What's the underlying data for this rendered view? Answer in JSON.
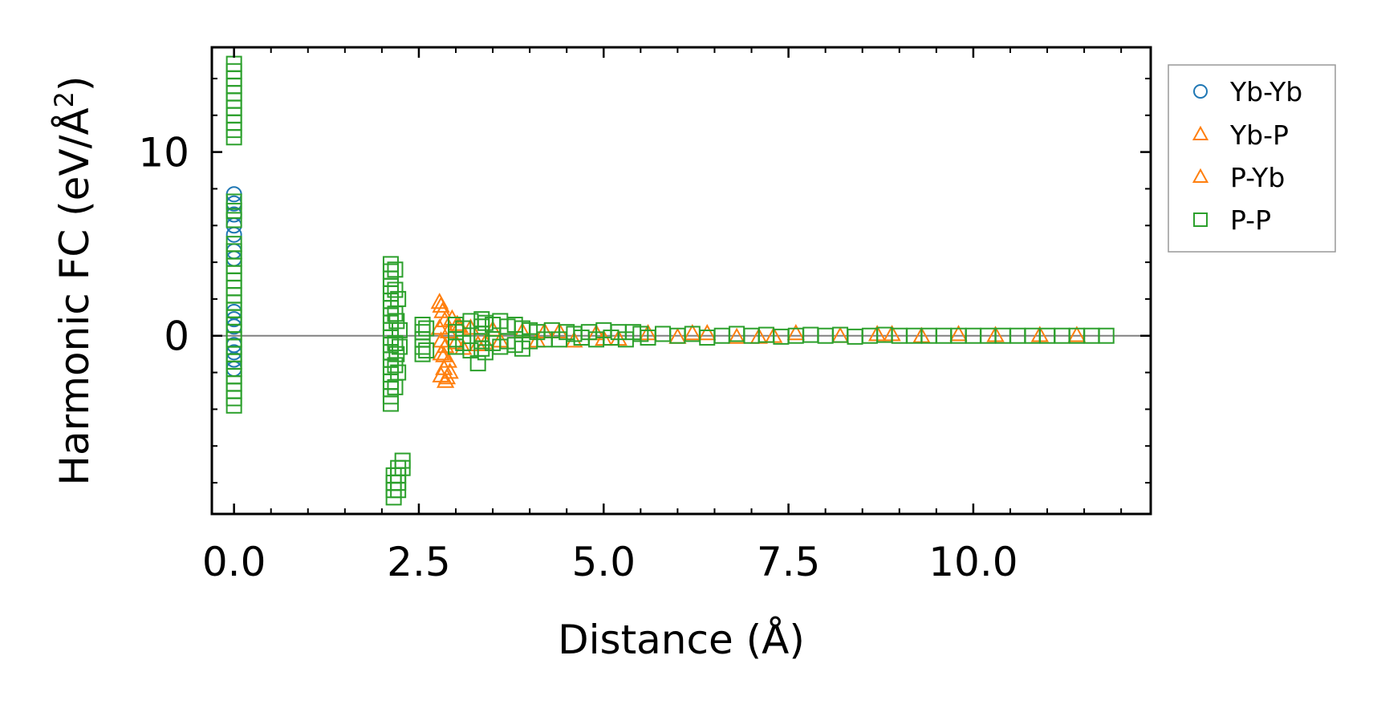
{
  "chart_data": {
    "type": "scatter",
    "xlabel": "Distance (Å)",
    "ylabel_main": "Harmonic FC (eV/Å",
    "ylabel_sup": "2",
    "ylabel_end": ")",
    "xlim": [
      -0.3,
      12.4
    ],
    "ylim": [
      -9.7,
      15.7
    ],
    "x_ticks": [
      0.0,
      2.5,
      5.0,
      7.5,
      10.0
    ],
    "x_tick_labels": [
      "0.0",
      "2.5",
      "5.0",
      "7.5",
      "10.0"
    ],
    "y_ticks": [
      0,
      10
    ],
    "y_tick_labels": [
      "0",
      "10"
    ],
    "x_minor_step": 0.5,
    "y_minor_step": 2,
    "zero_line": true,
    "legend_position": "outside-right-top",
    "series": [
      {
        "name": "Yb-Yb",
        "marker": "circle",
        "color": "#1f77b4",
        "points": [
          [
            0,
            7.7
          ],
          [
            0,
            7.2
          ],
          [
            0,
            6.6
          ],
          [
            0,
            6.0
          ],
          [
            0,
            5.5
          ],
          [
            0,
            4.6
          ],
          [
            0,
            4.2
          ],
          [
            0,
            1.3
          ],
          [
            0,
            0.9
          ],
          [
            0,
            0.5
          ],
          [
            0,
            -0.5
          ],
          [
            0,
            -0.9
          ],
          [
            0,
            -1.3
          ],
          [
            0,
            -1.8
          ]
        ]
      },
      {
        "name": "Yb-P",
        "marker": "triangle",
        "color": "#ff7f0e",
        "points": [
          [
            2.78,
            1.8
          ],
          [
            2.82,
            1.3
          ],
          [
            2.85,
            0.8
          ],
          [
            2.78,
            0.4
          ],
          [
            2.9,
            0.2
          ],
          [
            2.8,
            -0.3
          ],
          [
            2.86,
            -0.6
          ],
          [
            2.8,
            -1.0
          ],
          [
            2.9,
            -1.4
          ],
          [
            2.84,
            -1.8
          ],
          [
            2.8,
            -2.2
          ],
          [
            2.86,
            -2.5
          ],
          [
            2.92,
            -2.0
          ],
          [
            2.95,
            0.9
          ],
          [
            3.0,
            -0.4
          ],
          [
            3.05,
            0.5
          ],
          [
            3.1,
            -0.7
          ],
          [
            3.2,
            0.4
          ],
          [
            3.3,
            -0.5
          ],
          [
            3.5,
            0.3
          ],
          [
            3.6,
            -0.3
          ],
          [
            3.9,
            0.2
          ],
          [
            4.1,
            -0.3
          ],
          [
            4.4,
            0.2
          ],
          [
            4.6,
            -0.3
          ],
          [
            4.9,
            0.1
          ],
          [
            5.2,
            -0.2
          ],
          [
            5.6,
            0.1
          ],
          [
            6.0,
            -0.1
          ],
          [
            6.4,
            0.1
          ],
          [
            6.8,
            -0.1
          ],
          [
            7.1,
            -0.1
          ],
          [
            7.6,
            0.1
          ],
          [
            8.2,
            -0.05
          ],
          [
            8.7,
            0.05
          ],
          [
            9.3,
            -0.05
          ],
          [
            9.8,
            0.05
          ],
          [
            10.3,
            0.0
          ],
          [
            10.9,
            0.0
          ],
          [
            11.4,
            0.0
          ]
        ]
      },
      {
        "name": "P-Yb",
        "marker": "triangle",
        "color": "#ff7f0e",
        "points": [
          [
            2.8,
            1.6
          ],
          [
            2.84,
            -1.1
          ],
          [
            2.88,
            -2.3
          ],
          [
            3.02,
            0.6
          ],
          [
            3.4,
            -0.4
          ],
          [
            4.2,
            0.2
          ],
          [
            5.0,
            -0.2
          ],
          [
            6.2,
            0.1
          ],
          [
            7.3,
            -0.05
          ],
          [
            8.9,
            0.05
          ]
        ]
      },
      {
        "name": "P-P",
        "marker": "square",
        "color": "#2ca02c",
        "points": [
          [
            0,
            14.8
          ],
          [
            0,
            14.4
          ],
          [
            0,
            14.0
          ],
          [
            0,
            13.6
          ],
          [
            0,
            13.2
          ],
          [
            0,
            12.8
          ],
          [
            0,
            12.4
          ],
          [
            0,
            12.0
          ],
          [
            0,
            11.6
          ],
          [
            0,
            11.2
          ],
          [
            0,
            10.8
          ],
          [
            0,
            7.3
          ],
          [
            0,
            6.8
          ],
          [
            0,
            6.3
          ],
          [
            0,
            5.0
          ],
          [
            0,
            4.6
          ],
          [
            0,
            4.2
          ],
          [
            0,
            3.8
          ],
          [
            0,
            3.4
          ],
          [
            0,
            3.0
          ],
          [
            0,
            2.6
          ],
          [
            0,
            2.2
          ],
          [
            0,
            1.8
          ],
          [
            0,
            1.4
          ],
          [
            0,
            1.0
          ],
          [
            0,
            0.6
          ],
          [
            0,
            0.2
          ],
          [
            0,
            -0.2
          ],
          [
            0,
            -0.6
          ],
          [
            0,
            -1.0
          ],
          [
            0,
            -1.4
          ],
          [
            0,
            -1.8
          ],
          [
            0,
            -2.2
          ],
          [
            0,
            -2.6
          ],
          [
            0,
            -3.0
          ],
          [
            0,
            -3.4
          ],
          [
            0,
            -3.8
          ],
          [
            2.12,
            3.9
          ],
          [
            2.12,
            3.5
          ],
          [
            2.12,
            3.1
          ],
          [
            2.12,
            2.7
          ],
          [
            2.12,
            2.3
          ],
          [
            2.12,
            1.9
          ],
          [
            2.12,
            1.5
          ],
          [
            2.12,
            1.1
          ],
          [
            2.12,
            0.7
          ],
          [
            2.12,
            0.3
          ],
          [
            2.12,
            -0.1
          ],
          [
            2.12,
            -0.5
          ],
          [
            2.12,
            -0.9
          ],
          [
            2.12,
            -1.3
          ],
          [
            2.12,
            -1.7
          ],
          [
            2.12,
            -2.1
          ],
          [
            2.12,
            -2.5
          ],
          [
            2.12,
            -2.9
          ],
          [
            2.12,
            -3.3
          ],
          [
            2.12,
            -3.7
          ],
          [
            2.16,
            -7.6
          ],
          [
            2.16,
            -8.0
          ],
          [
            2.16,
            -8.4
          ],
          [
            2.16,
            -8.8
          ],
          [
            2.22,
            -7.2
          ],
          [
            2.22,
            -7.6
          ],
          [
            2.22,
            -8.0
          ],
          [
            2.22,
            -8.4
          ],
          [
            2.28,
            -6.8
          ],
          [
            2.28,
            -7.2
          ],
          [
            2.18,
            3.6
          ],
          [
            2.18,
            2.5
          ],
          [
            2.18,
            1.2
          ],
          [
            2.18,
            -0.4
          ],
          [
            2.18,
            -1.6
          ],
          [
            2.18,
            -2.8
          ],
          [
            2.2,
            0.8
          ],
          [
            2.2,
            -1.0
          ],
          [
            2.22,
            2.0
          ],
          [
            2.22,
            -2.0
          ],
          [
            2.24,
            0.3
          ],
          [
            2.24,
            -0.6
          ],
          [
            2.55,
            0.6
          ],
          [
            2.55,
            0.2
          ],
          [
            2.55,
            -0.2
          ],
          [
            2.55,
            -0.6
          ],
          [
            2.55,
            -1.0
          ],
          [
            2.6,
            0.4
          ],
          [
            2.6,
            -0.8
          ],
          [
            3.0,
            0.6
          ],
          [
            3.0,
            0.2
          ],
          [
            3.0,
            -0.2
          ],
          [
            3.0,
            -0.6
          ],
          [
            3.1,
            0.4
          ],
          [
            3.1,
            -0.4
          ],
          [
            3.2,
            0.8
          ],
          [
            3.2,
            -0.8
          ],
          [
            3.3,
            -1.5
          ],
          [
            3.35,
            0.9
          ],
          [
            3.35,
            0.5
          ],
          [
            3.35,
            0.1
          ],
          [
            3.35,
            -0.3
          ],
          [
            3.35,
            -0.7
          ],
          [
            3.4,
            0.7
          ],
          [
            3.4,
            -0.9
          ],
          [
            3.5,
            0.6
          ],
          [
            3.5,
            -0.4
          ],
          [
            3.6,
            0.8
          ],
          [
            3.6,
            -0.6
          ],
          [
            3.7,
            0.5
          ],
          [
            3.7,
            -0.3
          ],
          [
            3.8,
            0.6
          ],
          [
            3.8,
            -0.5
          ],
          [
            3.9,
            0.4
          ],
          [
            3.9,
            -0.7
          ],
          [
            4.0,
            0.3
          ],
          [
            4.0,
            -0.3
          ],
          [
            4.1,
            0.2
          ],
          [
            4.2,
            -0.2
          ],
          [
            4.3,
            0.3
          ],
          [
            4.4,
            -0.2
          ],
          [
            4.5,
            0.2
          ],
          [
            4.6,
            0.1
          ],
          [
            4.7,
            -0.1
          ],
          [
            4.8,
            0.2
          ],
          [
            4.9,
            -0.2
          ],
          [
            5.0,
            0.3
          ],
          [
            5.1,
            -0.1
          ],
          [
            5.2,
            0.2
          ],
          [
            5.3,
            -0.2
          ],
          [
            5.4,
            0.2
          ],
          [
            5.5,
            0.1
          ],
          [
            5.6,
            -0.1
          ],
          [
            5.8,
            0.1
          ],
          [
            6.0,
            0.0
          ],
          [
            6.2,
            0.1
          ],
          [
            6.4,
            -0.1
          ],
          [
            6.6,
            0.0
          ],
          [
            6.8,
            0.1
          ],
          [
            7.0,
            0.0
          ],
          [
            7.2,
            0.05
          ],
          [
            7.4,
            -0.05
          ],
          [
            7.6,
            0.0
          ],
          [
            7.8,
            0.05
          ],
          [
            8.0,
            0.0
          ],
          [
            8.2,
            0.05
          ],
          [
            8.4,
            -0.05
          ],
          [
            8.6,
            0.0
          ],
          [
            8.8,
            0.05
          ],
          [
            9.0,
            0.0
          ],
          [
            9.2,
            0.0
          ],
          [
            9.4,
            0.0
          ],
          [
            9.6,
            0.0
          ],
          [
            9.8,
            0.0
          ],
          [
            10.0,
            0.0
          ],
          [
            10.2,
            0.0
          ],
          [
            10.4,
            0.0
          ],
          [
            10.6,
            0.0
          ],
          [
            10.8,
            0.0
          ],
          [
            11.0,
            0.0
          ],
          [
            11.2,
            0.0
          ],
          [
            11.4,
            0.0
          ],
          [
            11.6,
            0.0
          ],
          [
            11.8,
            0.0
          ]
        ]
      }
    ]
  }
}
